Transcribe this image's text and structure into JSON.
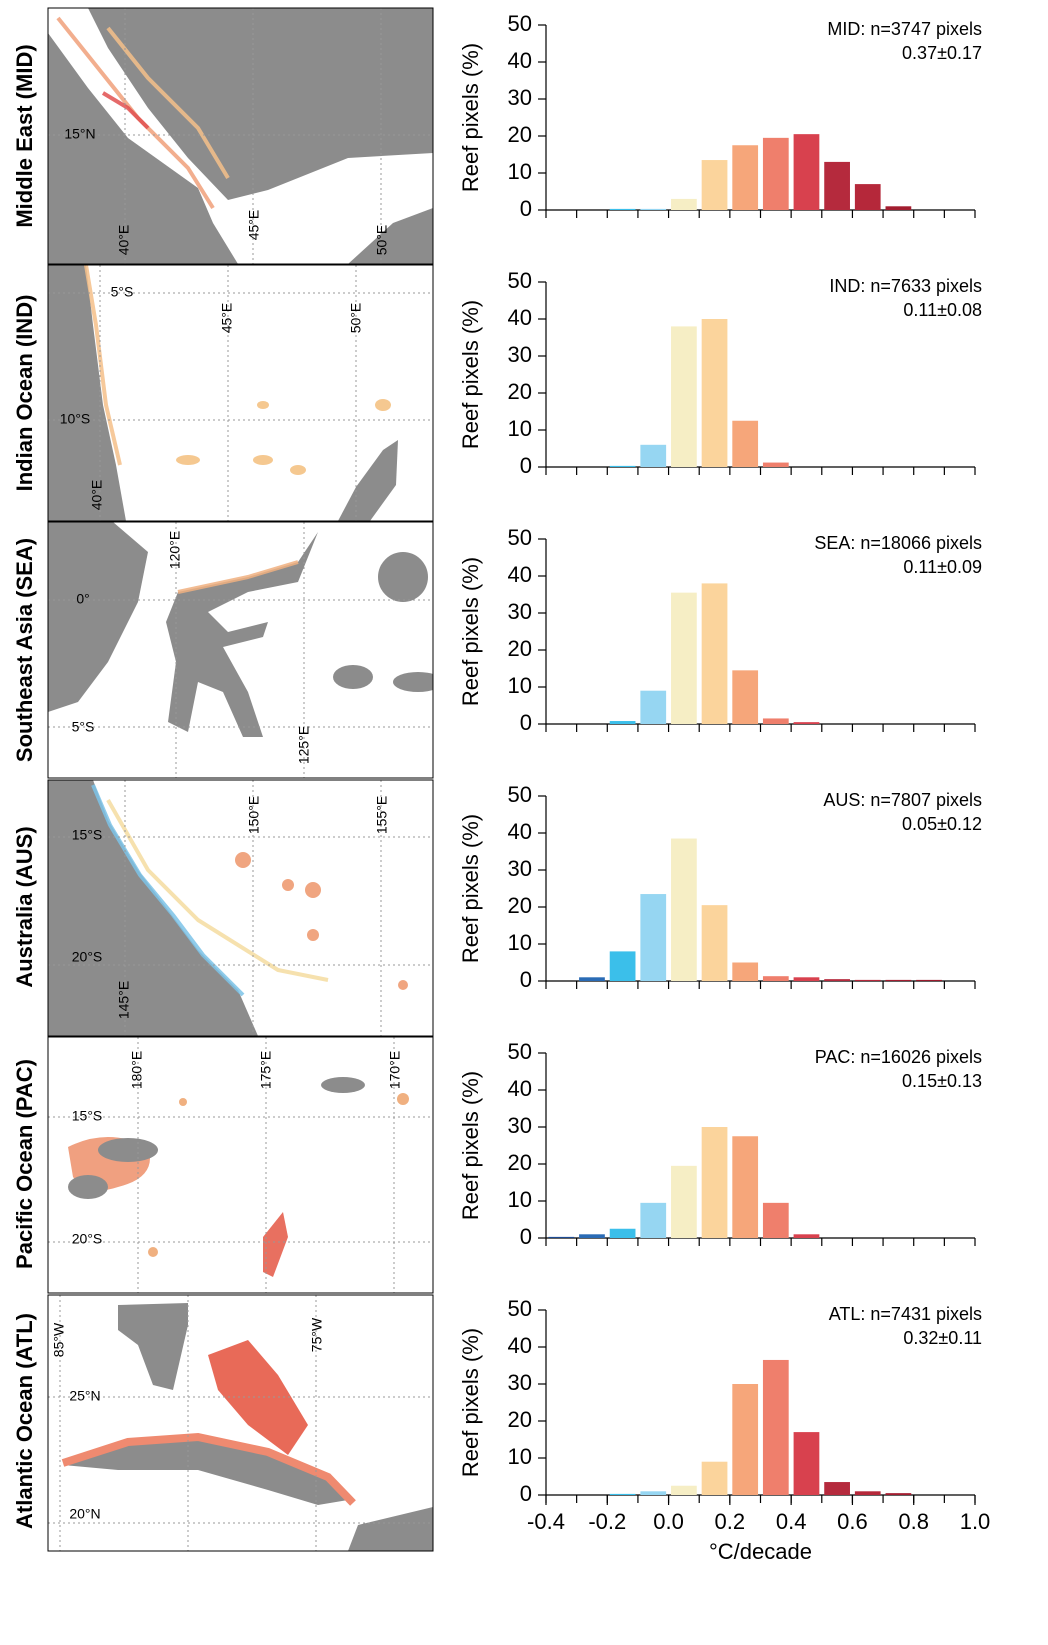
{
  "maps": [
    {
      "title": "Middle East (MID)",
      "labels": [
        "15°N",
        "40°E",
        "45°E",
        "50°E"
      ]
    },
    {
      "title": "Indian Ocean (IND)",
      "labels": [
        "5°S",
        "45°E",
        "50°E",
        "10°S",
        "40°E"
      ]
    },
    {
      "title": "Southeast Asia (SEA)",
      "labels": [
        "120°E",
        "0°",
        "5°S",
        "125°E"
      ]
    },
    {
      "title": "Australia (AUS)",
      "labels": [
        "150°E",
        "155°E",
        "15°S",
        "20°S",
        "145°E"
      ]
    },
    {
      "title": "Pacific Ocean (PAC)",
      "labels": [
        "180°E",
        "175°E",
        "170°E",
        "15°S",
        "20°S"
      ]
    },
    {
      "title": "Atlantic Ocean (ATL)",
      "labels": [
        "85°W",
        "75°W",
        "25°N",
        "20°N"
      ]
    }
  ],
  "chart_data": [
    {
      "type": "histogram",
      "title": "MID: n=3747 pixels",
      "subtitle": "0.37±0.17",
      "ylabel": "Reef pixels (%)",
      "bins": [
        -0.4,
        -0.3,
        -0.2,
        -0.1,
        0,
        0.1,
        0.2,
        0.3,
        0.4,
        0.5,
        0.6,
        0.7,
        0.8,
        0.9,
        1.0
      ],
      "values": [
        0,
        0,
        0.3,
        0.3,
        3,
        13.5,
        17.5,
        19.5,
        20.5,
        13,
        7,
        1,
        0,
        0
      ],
      "colors": [
        "#1c4a92",
        "#2a6bb5",
        "#3bbfea",
        "#96d6f2",
        "#f6eec5",
        "#fbd49c",
        "#f6a67a",
        "#ef7f6c",
        "#d8414e",
        "#b52a3d",
        "#b5283a",
        "#a21d2f",
        "#9a1a2c",
        "#8e1528"
      ],
      "xlim": [
        -0.4,
        1.0
      ],
      "ylim": [
        0,
        50
      ],
      "yticks": [
        0,
        10,
        20,
        30,
        40,
        50
      ]
    },
    {
      "type": "histogram",
      "title": "IND: n=7633 pixels",
      "subtitle": "0.11±0.08",
      "ylabel": "Reef pixels (%)",
      "bins": [
        -0.4,
        -0.3,
        -0.2,
        -0.1,
        0,
        0.1,
        0.2,
        0.3,
        0.4,
        0.5,
        0.6,
        0.7,
        0.8,
        0.9,
        1.0
      ],
      "values": [
        0,
        0,
        0.3,
        6,
        38,
        40,
        12.5,
        1.2,
        0,
        0,
        0,
        0,
        0,
        0
      ],
      "colors": [
        "#1c4a92",
        "#2a6bb5",
        "#3bbfea",
        "#96d6f2",
        "#f6eec5",
        "#fbd49c",
        "#f6a67a",
        "#ef7f6c",
        "#d8414e",
        "#b52a3d",
        "#b5283a",
        "#a21d2f",
        "#9a1a2c",
        "#8e1528"
      ],
      "xlim": [
        -0.4,
        1.0
      ],
      "ylim": [
        0,
        50
      ],
      "yticks": [
        0,
        10,
        20,
        30,
        40,
        50
      ]
    },
    {
      "type": "histogram",
      "title": "SEA: n=18066 pixels",
      "subtitle": "0.11±0.09",
      "ylabel": "Reef pixels (%)",
      "bins": [
        -0.4,
        -0.3,
        -0.2,
        -0.1,
        0,
        0.1,
        0.2,
        0.3,
        0.4,
        0.5,
        0.6,
        0.7,
        0.8,
        0.9,
        1.0
      ],
      "values": [
        0,
        0,
        0.8,
        9,
        35.5,
        38,
        14.5,
        1.5,
        0.5,
        0,
        0,
        0,
        0,
        0
      ],
      "colors": [
        "#1c4a92",
        "#2a6bb5",
        "#3bbfea",
        "#96d6f2",
        "#f6eec5",
        "#fbd49c",
        "#f6a67a",
        "#ef7f6c",
        "#d8414e",
        "#b52a3d",
        "#b5283a",
        "#a21d2f",
        "#9a1a2c",
        "#8e1528"
      ],
      "xlim": [
        -0.4,
        1.0
      ],
      "ylim": [
        0,
        50
      ],
      "yticks": [
        0,
        10,
        20,
        30,
        40,
        50
      ]
    },
    {
      "type": "histogram",
      "title": "AUS: n=7807 pixels",
      "subtitle": "0.05±0.12",
      "ylabel": "Reef pixels (%)",
      "bins": [
        -0.4,
        -0.3,
        -0.2,
        -0.1,
        0,
        0.1,
        0.2,
        0.3,
        0.4,
        0.5,
        0.6,
        0.7,
        0.8,
        0.9,
        1.0
      ],
      "values": [
        0,
        1,
        8,
        23.5,
        38.5,
        20.5,
        5,
        1.3,
        1,
        0.5,
        0.3,
        0.3,
        0.3,
        0
      ],
      "colors": [
        "#1c4a92",
        "#2a6bb5",
        "#3bbfea",
        "#96d6f2",
        "#f6eec5",
        "#fbd49c",
        "#f6a67a",
        "#ef7f6c",
        "#d8414e",
        "#b52a3d",
        "#b5283a",
        "#a21d2f",
        "#9a1a2c",
        "#8e1528"
      ],
      "xlim": [
        -0.4,
        1.0
      ],
      "ylim": [
        0,
        50
      ],
      "yticks": [
        0,
        10,
        20,
        30,
        40,
        50
      ]
    },
    {
      "type": "histogram",
      "title": "PAC: n=16026 pixels",
      "subtitle": "0.15±0.13",
      "ylabel": "Reef pixels (%)",
      "bins": [
        -0.4,
        -0.3,
        -0.2,
        -0.1,
        0,
        0.1,
        0.2,
        0.3,
        0.4,
        0.5,
        0.6,
        0.7,
        0.8,
        0.9,
        1.0
      ],
      "values": [
        0.3,
        1,
        2.5,
        9.5,
        19.5,
        30,
        27.5,
        9.5,
        1,
        0,
        0,
        0,
        0,
        0
      ],
      "colors": [
        "#1c4a92",
        "#2a6bb5",
        "#3bbfea",
        "#96d6f2",
        "#f6eec5",
        "#fbd49c",
        "#f6a67a",
        "#ef7f6c",
        "#d8414e",
        "#b52a3d",
        "#b5283a",
        "#a21d2f",
        "#9a1a2c",
        "#8e1528"
      ],
      "xlim": [
        -0.4,
        1.0
      ],
      "ylim": [
        0,
        50
      ],
      "yticks": [
        0,
        10,
        20,
        30,
        40,
        50
      ]
    },
    {
      "type": "histogram",
      "title": "ATL: n=7431 pixels",
      "subtitle": "0.32±0.11",
      "ylabel": "Reef pixels (%)",
      "xlabel": "°C/decade",
      "bins": [
        -0.4,
        -0.3,
        -0.2,
        -0.1,
        0,
        0.1,
        0.2,
        0.3,
        0.4,
        0.5,
        0.6,
        0.7,
        0.8,
        0.9,
        1.0
      ],
      "values": [
        0,
        0,
        0.3,
        1,
        2.5,
        9,
        30,
        36.5,
        17,
        3.5,
        1,
        0.5,
        0,
        0
      ],
      "colors": [
        "#1c4a92",
        "#2a6bb5",
        "#3bbfea",
        "#96d6f2",
        "#f6eec5",
        "#fbd49c",
        "#f6a67a",
        "#ef7f6c",
        "#d8414e",
        "#b52a3d",
        "#b5283a",
        "#a21d2f",
        "#9a1a2c",
        "#8e1528"
      ],
      "xlim": [
        -0.4,
        1.0
      ],
      "ylim": [
        0,
        50
      ],
      "yticks": [
        0,
        10,
        20,
        30,
        40,
        50
      ],
      "xticks": [
        -0.4,
        -0.2,
        {
          "value": 0,
          "label": "0.0"
        },
        0.2,
        0.4,
        0.6,
        0.8,
        {
          "value": 1.0,
          "label": "1.0"
        }
      ]
    }
  ]
}
